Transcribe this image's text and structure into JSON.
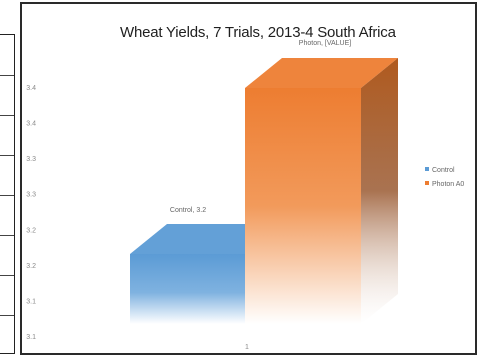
{
  "chart_data": {
    "type": "bar",
    "title": "Wheat Yields, 7 Trials, 2013-4 South Africa",
    "categories": [
      "1"
    ],
    "y_tick_labels": [
      "3.1",
      "3.1",
      "3.2",
      "3.2",
      "3.3",
      "3.3",
      "3.4",
      "3.4"
    ],
    "ylim": [
      3.1,
      3.4
    ],
    "grid": false,
    "legend_position": "right",
    "series": [
      {
        "name": "Control",
        "values": [
          3.2
        ],
        "color": "#5b9bd5",
        "data_label": "Control, 3.2"
      },
      {
        "name": "Photon A0",
        "values": [
          3.4
        ],
        "color": "#ed7d31",
        "data_label": "Photon, [VALUE]"
      }
    ]
  }
}
